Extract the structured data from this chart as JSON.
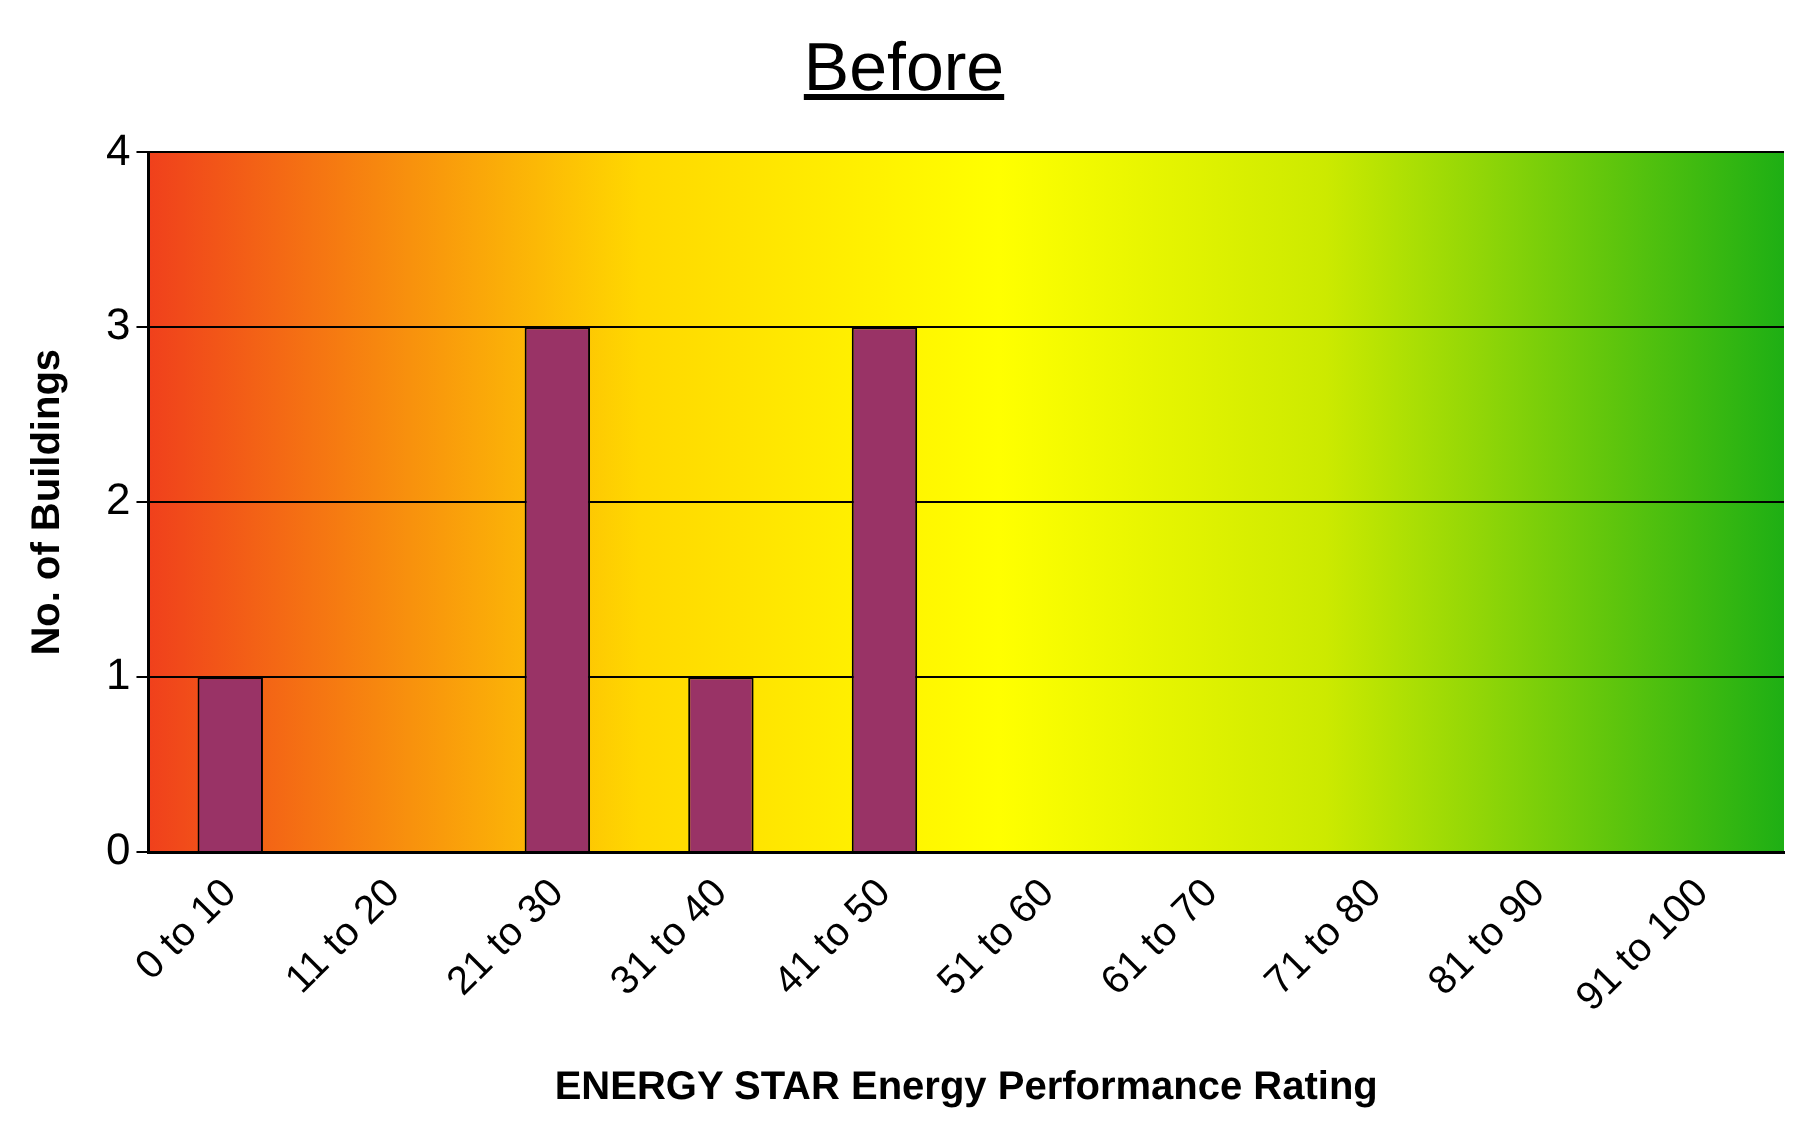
{
  "chart_data": {
    "type": "bar",
    "title": "Before",
    "xlabel": "ENERGY STAR Energy Performance Rating",
    "ylabel": "No. of Buildings",
    "categories": [
      "0 to 10",
      "11 to 20",
      "21 to 30",
      "31 to 40",
      "41 to 50",
      "51 to 60",
      "61 to 70",
      "71 to 80",
      "81 to 90",
      "91 to 100"
    ],
    "values": [
      1,
      0,
      3,
      1,
      3,
      0,
      0,
      0,
      0,
      0
    ],
    "color": "#993366",
    "ylim": [
      0,
      4
    ],
    "yticks": [
      0,
      1,
      2,
      3,
      4
    ],
    "grid": "y",
    "legend": false
  }
}
